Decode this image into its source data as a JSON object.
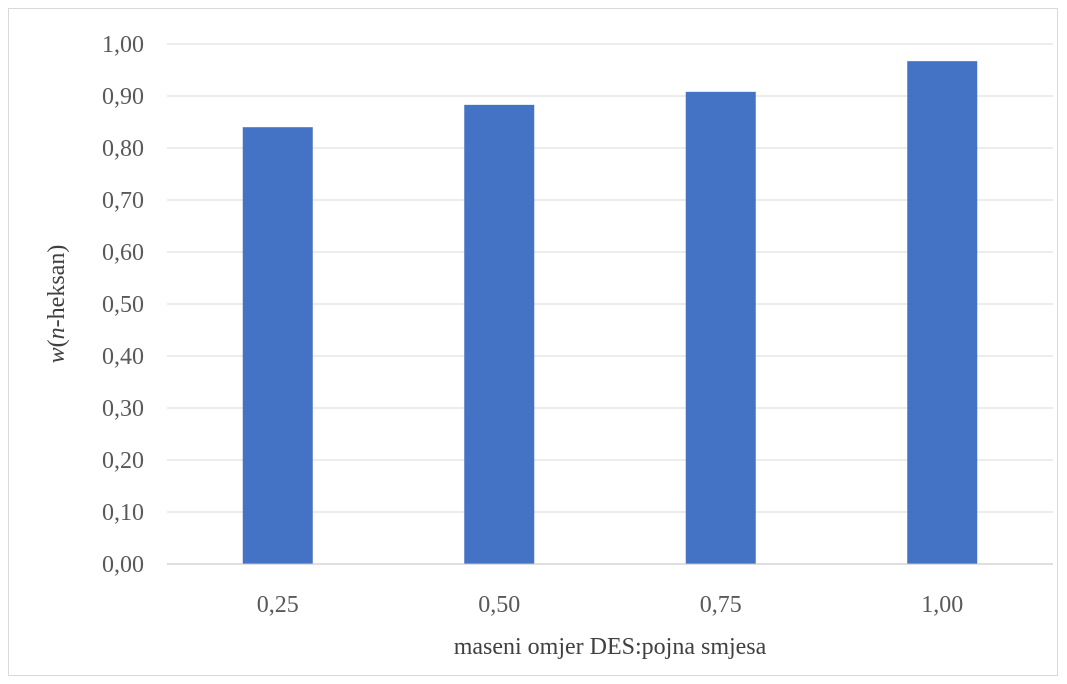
{
  "chart_data": {
    "type": "bar",
    "categories": [
      "0,25",
      "0,50",
      "0,75",
      "1,00"
    ],
    "values": [
      0.84,
      0.883,
      0.908,
      0.967
    ],
    "ylim": [
      0,
      1.0
    ],
    "yticks": [
      0.0,
      0.1,
      0.2,
      0.3,
      0.4,
      0.5,
      0.6,
      0.7,
      0.8,
      0.9,
      1.0
    ],
    "ytick_labels": [
      "0,00",
      "0,10",
      "0,20",
      "0,30",
      "0,40",
      "0,50",
      "0,60",
      "0,70",
      "0,80",
      "0,90",
      "1,00"
    ],
    "xlabel": "maseni omjer DES:pojna smjesa",
    "ylabel": {
      "w": "w",
      "open": "(",
      "n": "n",
      "rest": "-heksan)"
    },
    "grid": true,
    "legend": "none",
    "bar_color": "#4472c4",
    "grid_color": "#d9d9d9",
    "axis_color": "#bfbfbf"
  }
}
